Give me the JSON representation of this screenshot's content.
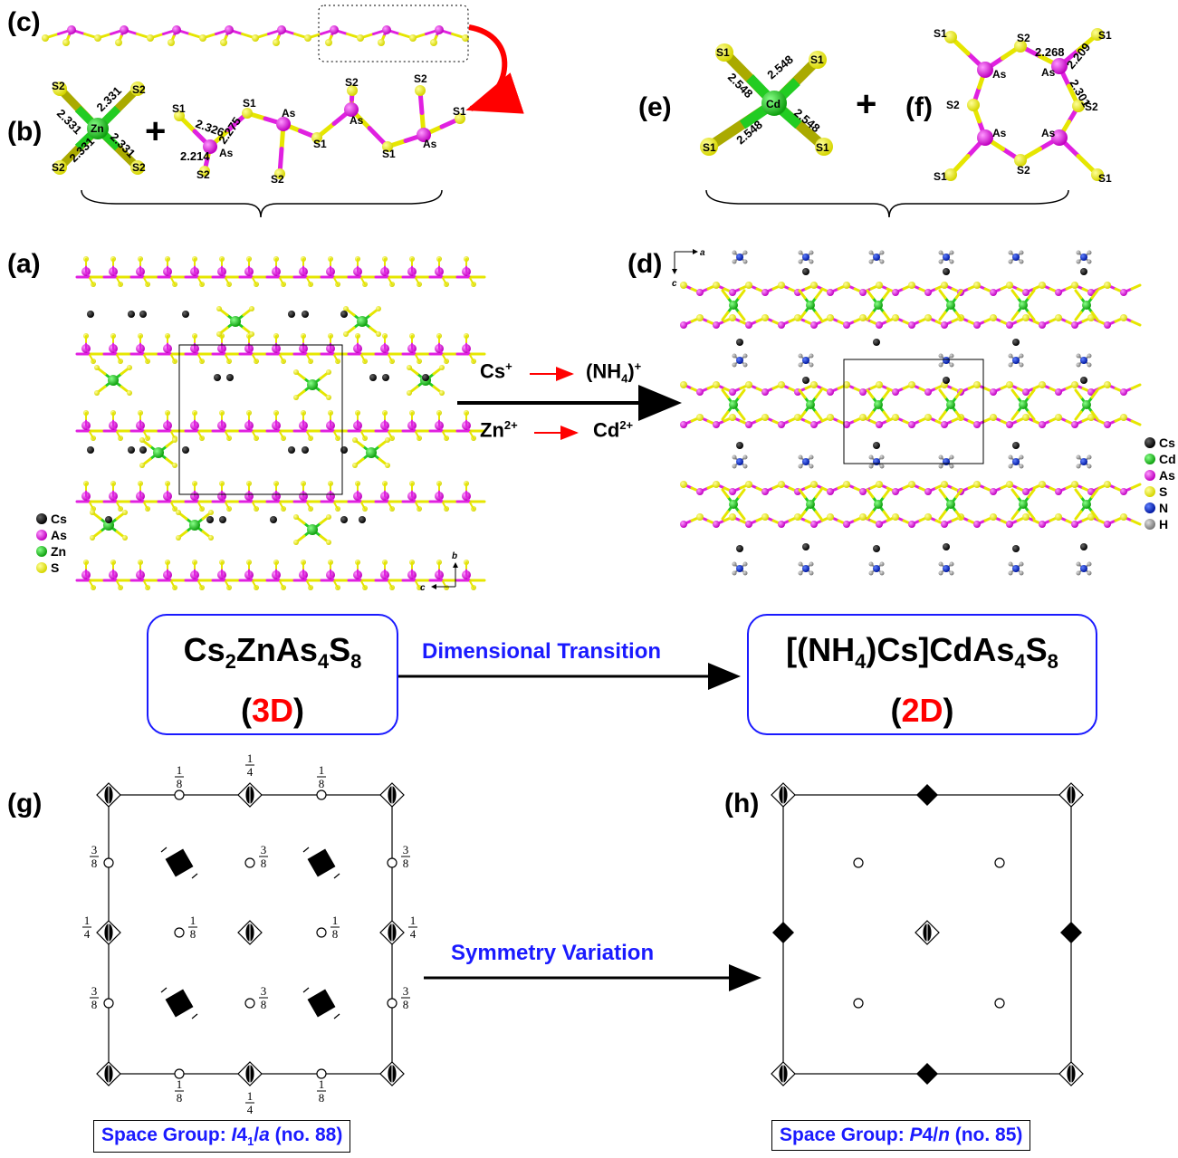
{
  "panels": {
    "a": "(a)",
    "b": "(b)",
    "c": "(c)",
    "d": "(d)",
    "e": "(e)",
    "f": "(f)",
    "g": "(g)",
    "h": "(h)"
  },
  "panel_b": {
    "plus": "+",
    "zn_label": "Zn",
    "s2": "S2",
    "s1": "S1",
    "as": "As",
    "bonds_zn": [
      "2.331",
      "2.331",
      "2.331",
      "2.331"
    ],
    "chain_bonds": [
      "2.326",
      "2.275",
      "2.214"
    ]
  },
  "panel_e": {
    "cd_label": "Cd",
    "s1": "S1",
    "bonds_cd": [
      "2.548",
      "2.548",
      "2.548",
      "2.548"
    ],
    "plus": "+"
  },
  "panel_f": {
    "as": "As",
    "s1": "S1",
    "s2": "S2",
    "bonds": [
      "2.268",
      "2.209",
      "2.301"
    ]
  },
  "legend_a": [
    "Cs",
    "As",
    "Zn",
    "S"
  ],
  "legend_d": [
    "Cs",
    "Cd",
    "As",
    "S",
    "N",
    "H"
  ],
  "axes_a": {
    "b": "b",
    "c": "c"
  },
  "axes_d": {
    "a": "a",
    "c": "c"
  },
  "reaction": {
    "cs_from": "Cs",
    "cs_from_sup": "+",
    "cs_to_prefix": "(NH",
    "cs_to_sub": "4",
    "cs_to_suffix": ")",
    "cs_to_sup": "+",
    "zn_from": "Zn",
    "zn_from_sup": "2+",
    "cd_to": "Cd",
    "cd_to_sup": "2+"
  },
  "compound_left": {
    "parts": [
      "Cs",
      "2",
      "ZnAs",
      "4",
      "S",
      "8"
    ],
    "dim_open": "(",
    "dim": "3D",
    "dim_close": ")"
  },
  "compound_right": {
    "parts": [
      "[(NH",
      "4",
      ")Cs]CdAs",
      "4",
      "S",
      "8"
    ],
    "dim_open": "(",
    "dim": "2D",
    "dim_close": ")"
  },
  "arrows": {
    "dimensional": "Dimensional Transition",
    "symmetry": "Symmetry Variation"
  },
  "panel_g_fractions": [
    "1",
    "8",
    "1",
    "4",
    "3",
    "8"
  ],
  "space_group_left": {
    "prefix": "Space Group: ",
    "symbol_i": "I",
    "symbol_4": "4",
    "symbol_sub": "1",
    "symbol_slash": "/",
    "symbol_a": "a",
    "suffix": " (no. 88)"
  },
  "space_group_right": {
    "prefix": "Space Group: ",
    "symbol_p": "P",
    "symbol_4": "4/",
    "symbol_n": "n",
    "suffix": " (no. 85)"
  },
  "colors": {
    "cs": "#111111",
    "as": "#e020e0",
    "zn": "#22cc22",
    "cd": "#22cc22",
    "s": "#f2f200",
    "n": "#1030d0",
    "h": "#999999",
    "accent": "#1a1aff",
    "red": "#ff0000"
  }
}
